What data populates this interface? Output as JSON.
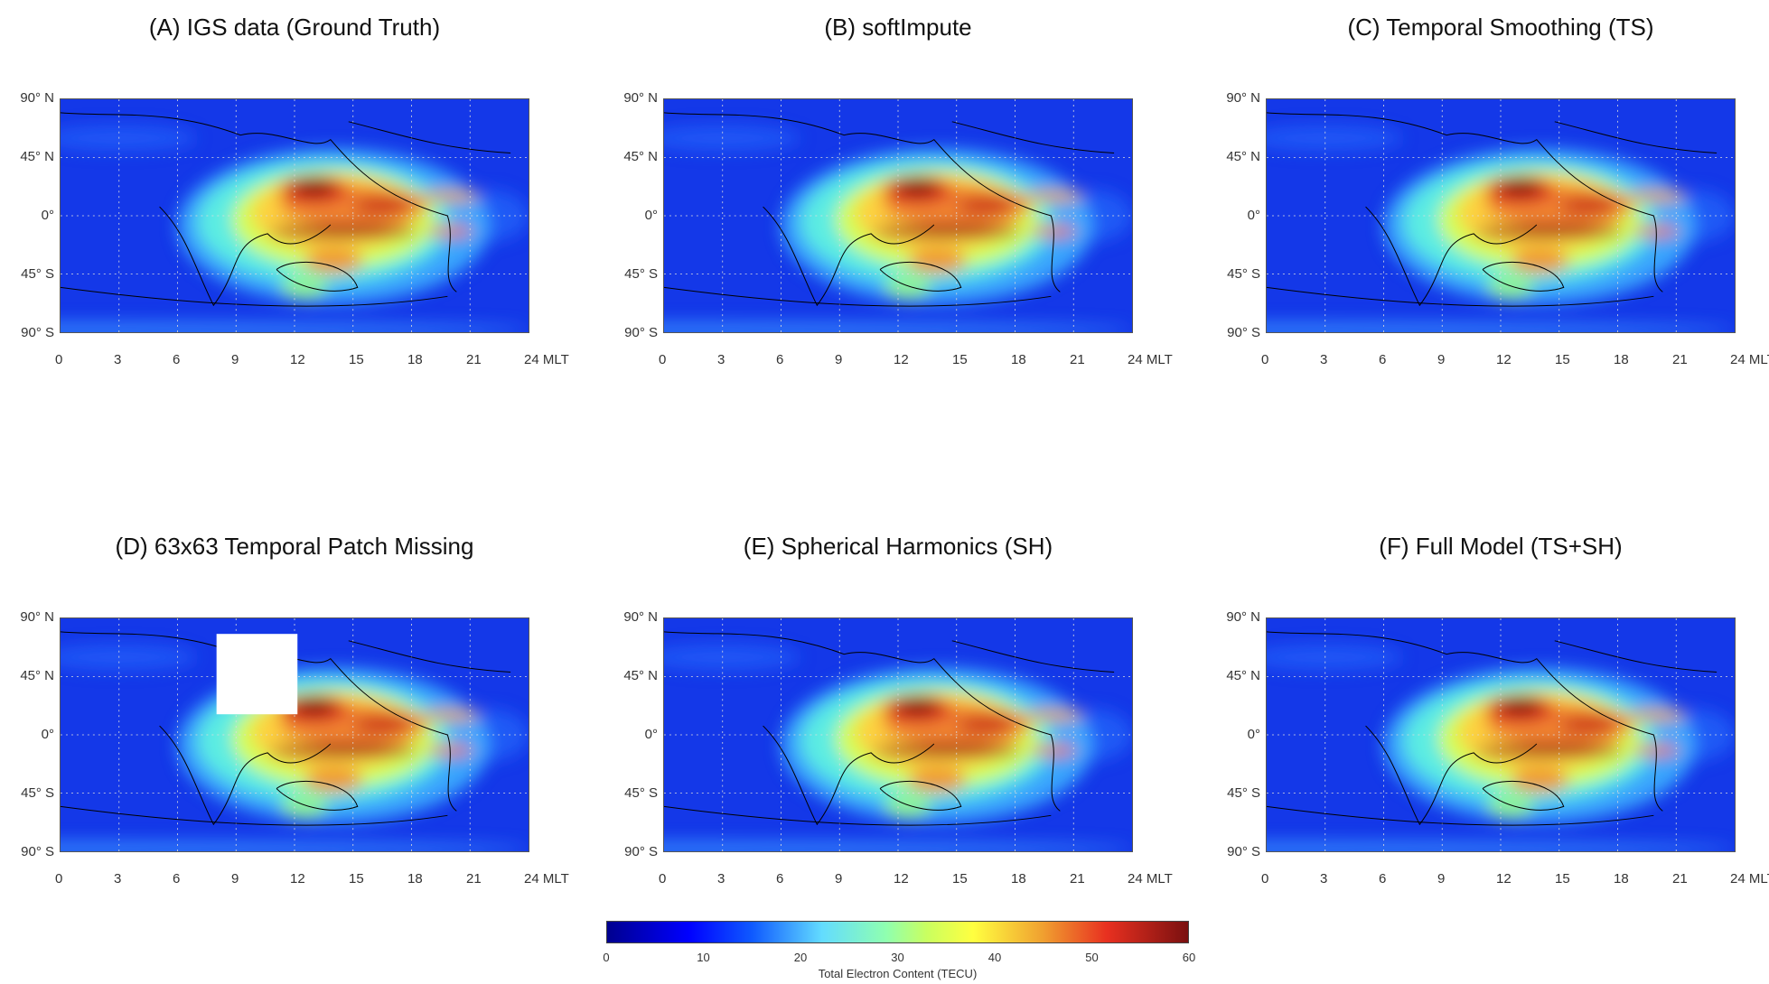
{
  "chart_data": [
    {
      "type": "heatmap",
      "title": "(A) IGS data (Ground Truth)",
      "missing_patch": false
    },
    {
      "type": "heatmap",
      "title": "(B) softImpute",
      "missing_patch": false
    },
    {
      "type": "heatmap",
      "title": "(C) Temporal Smoothing (TS)",
      "missing_patch": false
    },
    {
      "type": "heatmap",
      "title": "(D) 63x63 Temporal Patch Missing",
      "missing_patch": true
    },
    {
      "type": "heatmap",
      "title": "(E) Spherical Harmonics (SH)",
      "missing_patch": false
    },
    {
      "type": "heatmap",
      "title": "(F) Full Model (TS+SH)",
      "missing_patch": false
    }
  ],
  "axes": {
    "x_ticks": [
      "0",
      "3",
      "6",
      "9",
      "12",
      "15",
      "18",
      "21",
      "24 MLT"
    ],
    "x_range": [
      0,
      24
    ],
    "y_ticks": [
      "90° N",
      "45° N",
      "0°",
      "45° S",
      "90° S"
    ],
    "y_range": [
      -90,
      90
    ],
    "grid": true
  },
  "colorbar": {
    "label": "Total Electron Content (TECU)",
    "ticks": [
      "0",
      "10",
      "20",
      "30",
      "40",
      "50",
      "60"
    ],
    "range": [
      0,
      60
    ],
    "colormap": "jet"
  }
}
